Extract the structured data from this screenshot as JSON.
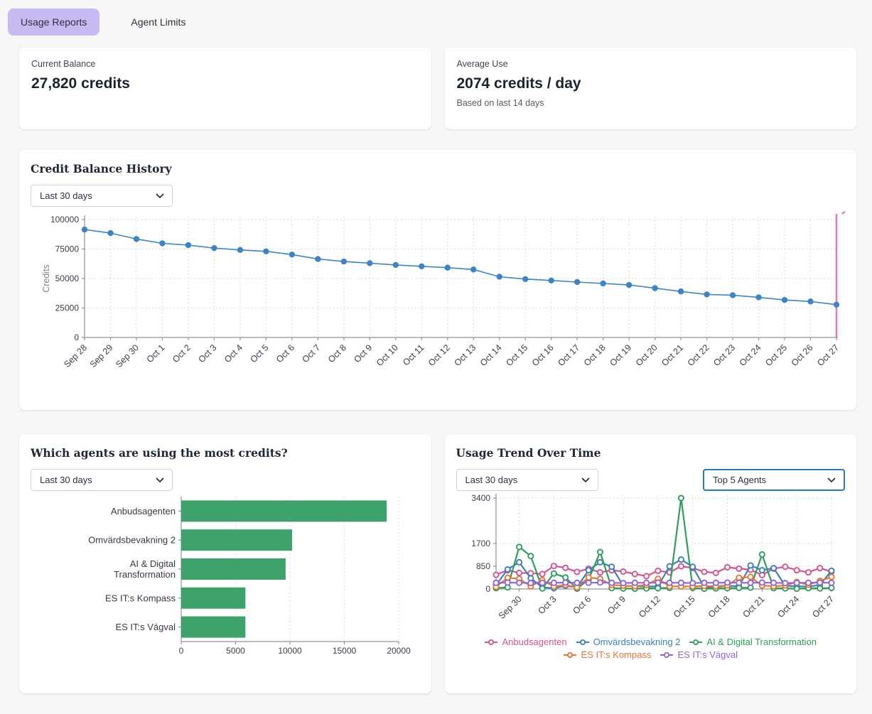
{
  "tabs": {
    "usage_reports": {
      "label": "Usage Reports"
    },
    "agent_limits": {
      "label": "Agent Limits"
    }
  },
  "summary": {
    "current_balance": {
      "label": "Current Balance",
      "value": "27,820 credits"
    },
    "average_use": {
      "label": "Average Use",
      "value": "2074 credits / day",
      "note": "Based on last 14 days"
    }
  },
  "balance_card": {
    "title": "Credit Balance History",
    "range_value": "Last 30 days"
  },
  "agents_card": {
    "title": "Which agents are using the most credits?",
    "range_value": "Last 30 days"
  },
  "trend_card": {
    "title": "Usage Trend Over Time",
    "range_value": "Last 30 days",
    "agents_value": "Top 5 Agents"
  },
  "colors": {
    "active_tab_bg": "#c9b9f2",
    "accent_blue": "#3d84c6",
    "today_line_pink": "#e37db2",
    "bar_green": "#3ea36a",
    "select_focus_border": "#2a7ac2"
  },
  "chart_data": [
    {
      "id": "balance_history",
      "type": "line",
      "title": "Credit Balance History",
      "ylabel": "Credits",
      "xlabel": "",
      "grid": true,
      "legend_position": "none",
      "x": [
        "Sep 28",
        "Sep 29",
        "Sep 30",
        "Oct 1",
        "Oct 2",
        "Oct 3",
        "Oct 4",
        "Oct 5",
        "Oct 6",
        "Oct 7",
        "Oct 8",
        "Oct 9",
        "Oct 10",
        "Oct 11",
        "Oct 12",
        "Oct 13",
        "Oct 14",
        "Oct 15",
        "Oct 16",
        "Oct 17",
        "Oct 18",
        "Oct 19",
        "Oct 20",
        "Oct 21",
        "Oct 22",
        "Oct 23",
        "Oct 24",
        "Oct 25",
        "Oct 26",
        "Oct 27"
      ],
      "xticks": "all",
      "ylim": [
        0,
        100000
      ],
      "yticks": [
        0,
        25000,
        50000,
        75000,
        100000
      ],
      "series": [
        {
          "name": "Credit Balance",
          "color": "#3d84c6",
          "values": [
            91500,
            88500,
            83500,
            79800,
            78300,
            75800,
            74200,
            73000,
            70300,
            66500,
            64400,
            63000,
            61500,
            60300,
            59200,
            57600,
            51500,
            49500,
            48300,
            47000,
            45800,
            44500,
            41800,
            39000,
            36500,
            35800,
            34000,
            31800,
            30500,
            27820
          ]
        }
      ],
      "today_line": {
        "x": "Oct 27",
        "color": "#e37db2"
      }
    },
    {
      "id": "top_agents",
      "type": "bar",
      "orientation": "horizontal",
      "title": "Which agents are using the most credits?",
      "categories": [
        "Anbudsagenten",
        "Omvärdsbevakning 2",
        "AI & Digital Transformation",
        "ES IT:s Kompass",
        "ES IT:s Vägval"
      ],
      "label_lines": [
        [
          "Anbudsagenten"
        ],
        [
          "Omvärdsbevakning 2"
        ],
        [
          "AI & Digital",
          "Transformation"
        ],
        [
          "ES IT:s Kompass"
        ],
        [
          "ES IT:s Vägval"
        ]
      ],
      "values": [
        18900,
        10200,
        9600,
        5900,
        5900
      ],
      "xlim": [
        0,
        20000
      ],
      "xticks": [
        0,
        5000,
        10000,
        15000,
        20000
      ],
      "grid": true,
      "bar_color": "#3ea36a"
    },
    {
      "id": "usage_trend",
      "type": "line",
      "title": "Usage Trend Over Time",
      "grid": true,
      "legend_position": "bottom",
      "x": [
        "Sep 28",
        "Sep 29",
        "Sep 30",
        "Oct 1",
        "Oct 2",
        "Oct 3",
        "Oct 4",
        "Oct 5",
        "Oct 6",
        "Oct 7",
        "Oct 8",
        "Oct 9",
        "Oct 10",
        "Oct 11",
        "Oct 12",
        "Oct 13",
        "Oct 14",
        "Oct 15",
        "Oct 16",
        "Oct 17",
        "Oct 18",
        "Oct 19",
        "Oct 20",
        "Oct 21",
        "Oct 22",
        "Oct 23",
        "Oct 24",
        "Oct 25",
        "Oct 26",
        "Oct 27"
      ],
      "xticks": [
        "Sep 30",
        "Oct 3",
        "Oct 6",
        "Oct 9",
        "Oct 12",
        "Oct 15",
        "Oct 18",
        "Oct 21",
        "Oct 24",
        "Oct 27"
      ],
      "ylim": [
        0,
        3400
      ],
      "yticks": [
        0,
        850,
        1700,
        3400
      ],
      "series": [
        {
          "name": "Anbudsagenten",
          "color": "#d5538f",
          "values": [
            530,
            700,
            600,
            590,
            560,
            860,
            790,
            640,
            760,
            620,
            700,
            650,
            560,
            480,
            680,
            620,
            850,
            780,
            640,
            600,
            810,
            760,
            720,
            520,
            760,
            830,
            700,
            620,
            780,
            640
          ]
        },
        {
          "name": "Omvärdsbevakning 2",
          "color": "#3c7fc0",
          "values": [
            150,
            730,
            1000,
            400,
            60,
            30,
            120,
            60,
            700,
            1000,
            830,
            120,
            100,
            90,
            100,
            850,
            1100,
            830,
            60,
            80,
            120,
            100,
            880,
            700,
            780,
            120,
            100,
            90,
            150,
            680
          ]
        },
        {
          "name": "AI & Digital Transformation",
          "color": "#2f9e58",
          "values": [
            30,
            60,
            1570,
            1230,
            20,
            580,
            430,
            10,
            350,
            1380,
            30,
            20,
            10,
            20,
            30,
            40,
            3400,
            40,
            10,
            20,
            30,
            40,
            50,
            1290,
            30,
            20,
            10,
            30,
            20,
            40
          ]
        },
        {
          "name": "ES IT:s Kompass",
          "color": "#e8772e",
          "values": [
            80,
            420,
            380,
            100,
            330,
            90,
            150,
            60,
            430,
            380,
            150,
            120,
            100,
            150,
            380,
            100,
            90,
            100,
            110,
            100,
            130,
            420,
            450,
            130,
            100,
            130,
            260,
            160,
            300,
            450
          ]
        },
        {
          "name": "ES IT:s Vägval",
          "color": "#9165d6",
          "values": [
            230,
            240,
            230,
            220,
            230,
            230,
            240,
            230,
            230,
            240,
            230,
            220,
            230,
            230,
            240,
            230,
            230,
            220,
            230,
            230,
            240,
            230,
            230,
            240,
            230,
            220,
            230,
            230,
            240,
            230
          ]
        }
      ]
    }
  ]
}
